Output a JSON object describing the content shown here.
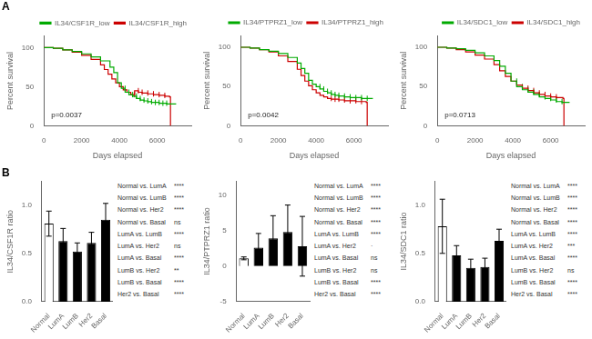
{
  "chart_data": [
    {
      "type": "line",
      "title": "A",
      "xlabel": "Days elapsed",
      "ylabel": "Percent survival",
      "line_style": "steps-post",
      "xlim": [
        0,
        7800
      ],
      "xticks": [
        0,
        2000,
        4000,
        6000
      ],
      "ylim": [
        0,
        115
      ],
      "yticks": [
        0,
        50,
        100
      ],
      "grid": false,
      "legend": "upper right",
      "annotations": [
        "p=0.0037"
      ],
      "series": [
        {
          "name": "IL34/CSF1R_low",
          "color": "#00aa00",
          "x": [
            0,
            500,
            1000,
            1500,
            2000,
            2500,
            3000,
            3500,
            3700,
            3900,
            4100,
            4300,
            4500,
            4700,
            4900,
            5100,
            5300,
            5500,
            5700,
            5900,
            6100,
            6300,
            6500,
            6700,
            7000
          ],
          "values": [
            100,
            99,
            97,
            95,
            92,
            88,
            83,
            75,
            68,
            55,
            48,
            43,
            40,
            38,
            35,
            33,
            32,
            31,
            30,
            30,
            29,
            29,
            28,
            28,
            28
          ],
          "censor_x": [
            4300,
            4500,
            4700,
            4900,
            5100,
            5300,
            5500,
            5700,
            5900,
            6100,
            6300,
            6500
          ],
          "censor_y": [
            48,
            43,
            40,
            38,
            35,
            33,
            32,
            31,
            30,
            30,
            29,
            29
          ]
        },
        {
          "name": "IL34/CSF1R_high",
          "color": "#cc0000",
          "x": [
            0,
            500,
            1000,
            1500,
            2000,
            2500,
            3000,
            3200,
            3400,
            3600,
            3800,
            4000,
            4200,
            4400,
            4600,
            4800,
            5000,
            5200,
            5500,
            5800,
            6100,
            6400,
            6650,
            6700
          ],
          "values": [
            100,
            99,
            97,
            94,
            90,
            85,
            78,
            72,
            66,
            60,
            55,
            50,
            46,
            43,
            40,
            45,
            43,
            42,
            41,
            40,
            39,
            38,
            37,
            0
          ],
          "censor_x": [
            4800,
            5000,
            5200,
            5500,
            5800,
            6100,
            6400
          ],
          "censor_y": [
            40,
            45,
            43,
            42,
            41,
            40,
            39
          ]
        }
      ]
    },
    {
      "type": "line",
      "xlabel": "Days elapsed",
      "ylabel": "Percent survival",
      "line_style": "steps-post",
      "xlim": [
        0,
        7800
      ],
      "xticks": [
        0,
        2000,
        4000,
        6000
      ],
      "ylim": [
        0,
        115
      ],
      "yticks": [
        0,
        50,
        100
      ],
      "grid": false,
      "legend": "upper right",
      "annotations": [
        "p=0.0042"
      ],
      "series": [
        {
          "name": "IL34/PTPRZ1_low",
          "color": "#00aa00",
          "x": [
            0,
            500,
            1000,
            1500,
            2000,
            2500,
            3000,
            3200,
            3400,
            3600,
            3800,
            4000,
            4200,
            4400,
            4600,
            4800,
            5000,
            5200,
            5500,
            5800,
            6100,
            6400,
            6700,
            7000
          ],
          "values": [
            100,
            99,
            97,
            95,
            92,
            87,
            80,
            73,
            67,
            58,
            53,
            50,
            47,
            44,
            42,
            40,
            39,
            38,
            37,
            36,
            36,
            35,
            35,
            35
          ],
          "censor_x": [
            4200,
            4400,
            4600,
            4800,
            5000,
            5200,
            5500,
            5800,
            6100,
            6400,
            6700
          ],
          "censor_y": [
            50,
            47,
            44,
            42,
            40,
            39,
            38,
            37,
            36,
            36,
            35
          ]
        },
        {
          "name": "IL34/PTPRZ1_high",
          "color": "#cc0000",
          "x": [
            0,
            500,
            1000,
            1500,
            2000,
            2500,
            3000,
            3200,
            3400,
            3600,
            3800,
            4000,
            4200,
            4400,
            4600,
            4800,
            5000,
            5200,
            5500,
            5800,
            6100,
            6400,
            6650,
            6700
          ],
          "values": [
            100,
            99,
            97,
            94,
            89,
            82,
            72,
            64,
            57,
            51,
            46,
            42,
            39,
            37,
            35,
            34,
            34,
            33,
            32,
            32,
            31,
            31,
            30,
            0
          ],
          "censor_x": [
            4800,
            5000,
            5200,
            5500,
            5800,
            6100,
            6400
          ],
          "censor_y": [
            35,
            34,
            34,
            33,
            32,
            32,
            31
          ]
        }
      ]
    },
    {
      "type": "line",
      "xlabel": "Days elapsed",
      "ylabel": "Percent survival",
      "line_style": "steps-post",
      "xlim": [
        0,
        7800
      ],
      "xticks": [
        0,
        2000,
        4000,
        6000
      ],
      "ylim": [
        0,
        115
      ],
      "yticks": [
        0,
        50,
        100
      ],
      "grid": false,
      "legend": "upper right",
      "annotations": [
        "p=0.0713"
      ],
      "series": [
        {
          "name": "IL34/SDC1_low",
          "color": "#00aa00",
          "x": [
            0,
            500,
            1000,
            1500,
            2000,
            2500,
            3000,
            3300,
            3600,
            3900,
            4200,
            4500,
            4800,
            5100,
            5400,
            5700,
            6000,
            6300,
            6600,
            7000
          ],
          "values": [
            100,
            99,
            98,
            96,
            93,
            89,
            83,
            76,
            67,
            57,
            50,
            46,
            43,
            40,
            37,
            35,
            33,
            31,
            30,
            30
          ],
          "censor_x": [
            4200,
            4500,
            4800,
            5100,
            5400,
            5700,
            6000,
            6300,
            6600
          ],
          "censor_y": [
            57,
            50,
            46,
            43,
            40,
            37,
            35,
            33,
            31
          ]
        },
        {
          "name": "IL34/SDC1_high",
          "color": "#cc0000",
          "x": [
            0,
            500,
            1000,
            1500,
            2000,
            2500,
            3000,
            3300,
            3600,
            3900,
            4200,
            4500,
            4800,
            5100,
            5400,
            5700,
            6000,
            6300,
            6650,
            6700
          ],
          "values": [
            100,
            99,
            97,
            94,
            90,
            85,
            78,
            70,
            63,
            57,
            52,
            48,
            45,
            42,
            40,
            38,
            37,
            36,
            35,
            0
          ],
          "censor_x": [
            4800,
            5100,
            5400,
            5700,
            6000,
            6300
          ],
          "censor_y": [
            48,
            45,
            42,
            40,
            38,
            37
          ]
        }
      ]
    },
    {
      "type": "bar",
      "title": "B",
      "ylabel": "IL34/CSF1R ratio",
      "categories": [
        "Normal",
        "LumA",
        "LumB",
        "Her2",
        "Basal"
      ],
      "values": [
        0.81,
        0.63,
        0.52,
        0.61,
        0.85
      ],
      "errors": [
        0.13,
        0.13,
        0.09,
        0.11,
        0.17
      ],
      "colors": [
        "white",
        "black",
        "black",
        "black",
        "black"
      ],
      "ylim": [
        0,
        1.25
      ],
      "yticks": [
        {
          "value": 0,
          "label": "0.0"
        },
        0.5,
        {
          "value": 1,
          "label": "1.0"
        }
      ],
      "grid": false,
      "comparisons": [
        {
          "pair": "Normal vs. LumA",
          "significance": "****"
        },
        {
          "pair": "Normal vs. LumB",
          "significance": "****"
        },
        {
          "pair": "Normal vs. Her2",
          "significance": "****"
        },
        {
          "pair": "Normal vs. Basal",
          "significance": "ns"
        },
        {
          "pair": "LumA vs. LumB",
          "significance": "****"
        },
        {
          "pair": "LumA vs. Her2",
          "significance": "ns"
        },
        {
          "pair": "LumA vs. Basal",
          "significance": "****"
        },
        {
          "pair": "LumB vs. Her2",
          "significance": "**"
        },
        {
          "pair": "LumB vs. Basal",
          "significance": "****"
        },
        {
          "pair": "Her2 vs. Basal",
          "significance": "****"
        }
      ]
    },
    {
      "type": "bar",
      "ylabel": "IL34/PTPRZ1 ratio",
      "categories": [
        "Normal",
        "LumA",
        "LumB",
        "Her2",
        "Basal"
      ],
      "values": [
        1.1,
        2.6,
        3.9,
        4.8,
        2.8
      ],
      "errors": [
        0.2,
        2.0,
        3.2,
        3.8,
        4.2
      ],
      "colors": [
        "white",
        "black",
        "black",
        "black",
        "black"
      ],
      "ylim": [
        -5,
        12
      ],
      "yticks": [
        -5,
        0,
        5,
        10
      ],
      "grid": false,
      "comparisons": [
        {
          "pair": "Normal vs. LumA",
          "significance": "****"
        },
        {
          "pair": "Normal vs. LumB",
          "significance": "****"
        },
        {
          "pair": "Normal vs. Her2",
          "significance": "****"
        },
        {
          "pair": "Normal vs. Basal",
          "significance": "****"
        },
        {
          "pair": "LumA vs. LumB",
          "significance": "****"
        },
        {
          "pair": "LumA vs. Her2",
          "significance": "·"
        },
        {
          "pair": "LumA vs. Basal",
          "significance": "ns"
        },
        {
          "pair": "LumB vs. Her2",
          "significance": "ns"
        },
        {
          "pair": "LumB vs. Basal",
          "significance": "****"
        },
        {
          "pair": "Her2 vs. Basal",
          "significance": "****"
        }
      ]
    },
    {
      "type": "bar",
      "ylabel": "IL34/SDC1 ratio",
      "categories": [
        "Normal",
        "LumA",
        "LumB",
        "Her2",
        "Basal"
      ],
      "values": [
        0.78,
        0.48,
        0.35,
        0.36,
        0.63
      ],
      "errors": [
        0.28,
        0.1,
        0.09,
        0.09,
        0.12
      ],
      "colors": [
        "white",
        "black",
        "black",
        "black",
        "black"
      ],
      "ylim": [
        0,
        1.25
      ],
      "yticks": [
        {
          "value": 0,
          "label": "0.0"
        },
        0.5,
        {
          "value": 1,
          "label": "1.0"
        }
      ],
      "grid": false,
      "comparisons": [
        {
          "pair": "Normal vs. LumA",
          "significance": "****"
        },
        {
          "pair": "Normal vs. LumB",
          "significance": "****"
        },
        {
          "pair": "Normal vs. Her2",
          "significance": "****"
        },
        {
          "pair": "Normal vs. Basal",
          "significance": "****"
        },
        {
          "pair": "LumA vs. LumB",
          "significance": "****"
        },
        {
          "pair": "LumA vs. Her2",
          "significance": "***"
        },
        {
          "pair": "LumA vs. Basal",
          "significance": "****"
        },
        {
          "pair": "LumB vs. Her2",
          "significance": "ns"
        },
        {
          "pair": "LumB vs. Basal",
          "significance": "****"
        },
        {
          "pair": "Her2 vs. Basal",
          "significance": "****"
        }
      ]
    }
  ]
}
